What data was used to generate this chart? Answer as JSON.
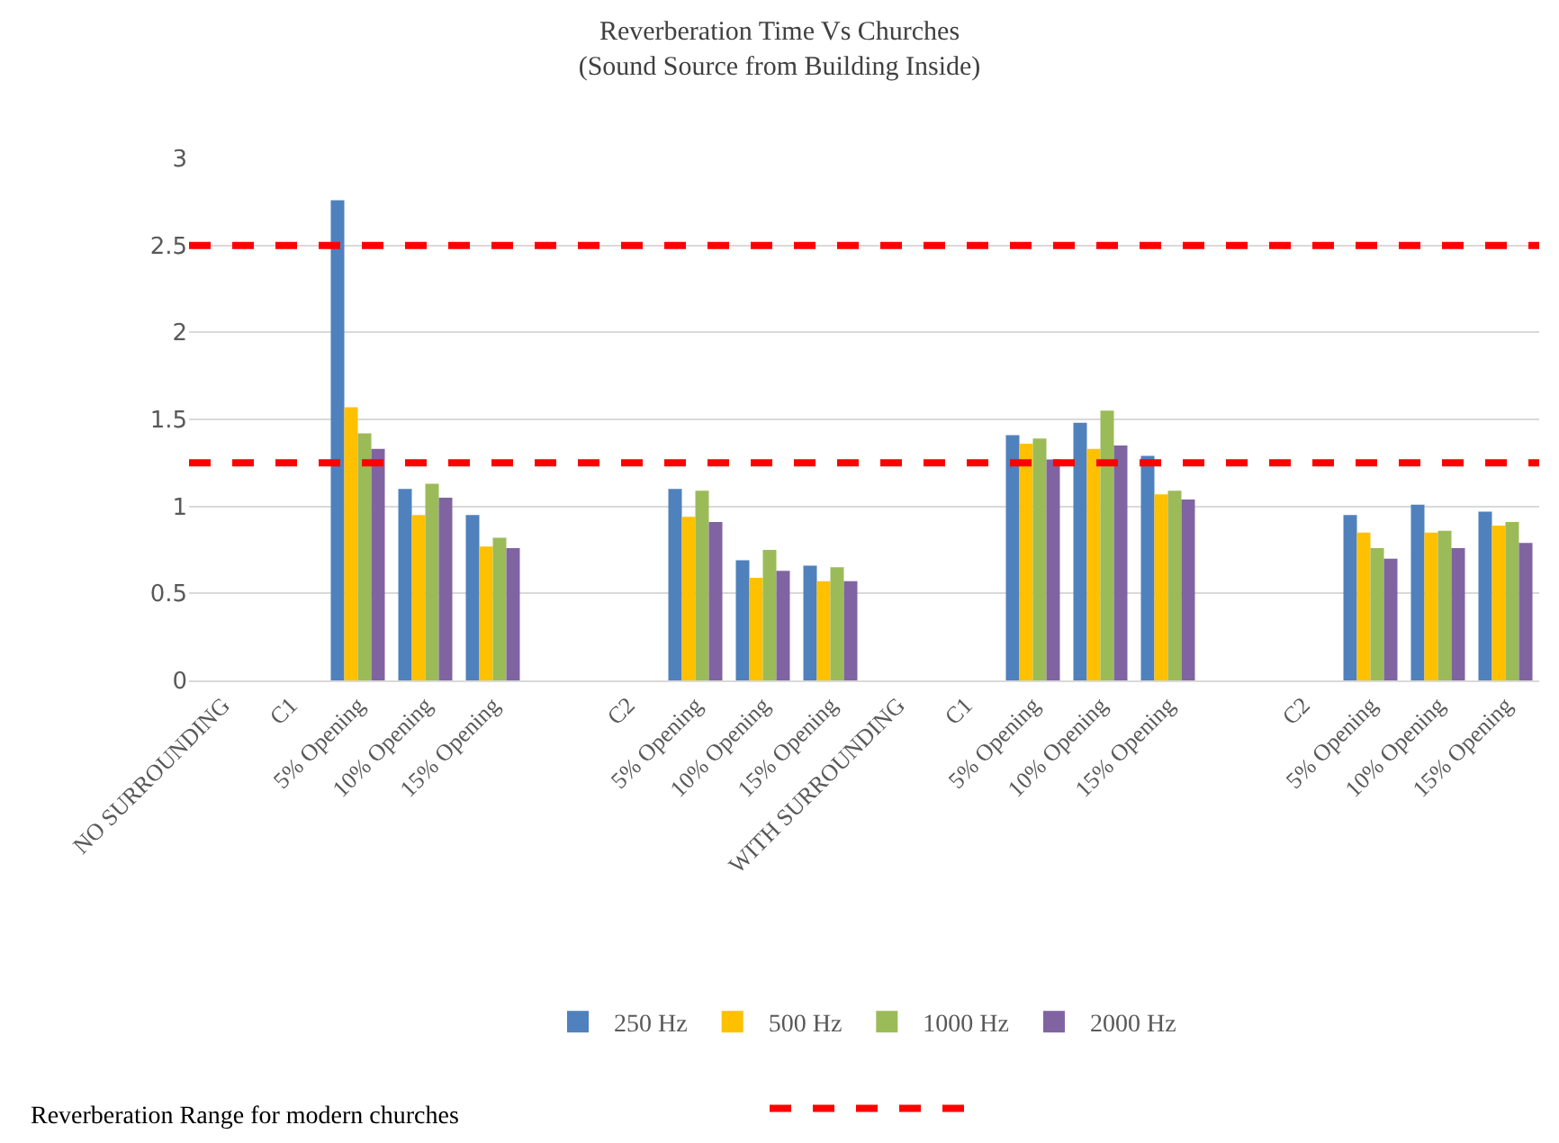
{
  "chart_data": {
    "type": "bar",
    "title": "Reverberation Time Vs Churches\n(Sound Source from Building Inside)",
    "categories": [
      "NO SURROUNDING",
      "C1",
      "5% Opening",
      "10% Opening",
      "15% Opening",
      null,
      "C2",
      "5% Opening",
      "10% Opening",
      "15% Opening",
      "WITH SURROUNDING",
      "C1",
      "5% Opening",
      "10% Opening",
      "15% Opening",
      null,
      "C2",
      "5% Opening",
      "10% Opening",
      "15% Opening"
    ],
    "series": [
      {
        "name": "250 Hz",
        "color": "#4f81bd",
        "values": [
          null,
          null,
          2.76,
          1.1,
          0.95,
          null,
          null,
          1.1,
          0.69,
          0.66,
          null,
          null,
          1.41,
          1.48,
          1.29,
          null,
          null,
          0.95,
          1.01,
          0.97
        ]
      },
      {
        "name": "500 Hz",
        "color": "#ffc000",
        "values": [
          null,
          null,
          1.57,
          0.95,
          0.77,
          null,
          null,
          0.94,
          0.59,
          0.57,
          null,
          null,
          1.36,
          1.33,
          1.07,
          null,
          null,
          0.85,
          0.85,
          0.89
        ]
      },
      {
        "name": "1000 Hz",
        "color": "#9bbb59",
        "values": [
          null,
          null,
          1.42,
          1.13,
          0.82,
          null,
          null,
          1.09,
          0.75,
          0.65,
          null,
          null,
          1.39,
          1.55,
          1.09,
          null,
          null,
          0.76,
          0.86,
          0.91
        ]
      },
      {
        "name": "2000 Hz",
        "color": "#8064a2",
        "values": [
          null,
          null,
          1.33,
          1.05,
          0.76,
          null,
          null,
          0.91,
          0.63,
          0.57,
          null,
          null,
          1.27,
          1.35,
          1.04,
          null,
          null,
          0.7,
          0.76,
          0.79
        ]
      }
    ],
    "ylim": [
      0,
      3
    ],
    "yticks": [
      0,
      0.5,
      1,
      1.5,
      2,
      2.5,
      3
    ],
    "grid": "y",
    "legend": "bottom",
    "ref_lines": [
      {
        "axis": "y",
        "value": 2.5,
        "color": "#ff0000",
        "line_style": "dashed"
      },
      {
        "axis": "y",
        "value": 1.25,
        "color": "#ff0000",
        "line_style": "dashed"
      }
    ],
    "annotations": [
      "Reverberation Range for modern churches"
    ]
  }
}
